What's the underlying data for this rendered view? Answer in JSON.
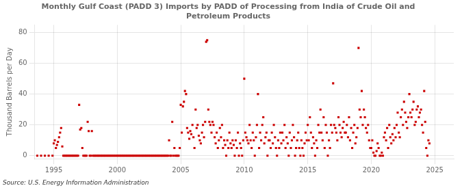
{
  "chart_data": {
    "type": "scatter",
    "title": "Monthly Gulf Coast (PADD 3) Imports by PADD of Processing from India of Crude Oil and\nPetroleum Products",
    "ylabel": "Thousand Barrels per Day",
    "source": "Source: U.S. Energy Information Administration",
    "color": "#cc0000",
    "marker": "square",
    "grid": true,
    "xlim": [
      1993.5,
      2026.5
    ],
    "ylim": [
      -2,
      85
    ],
    "xticks": [
      1995,
      2000,
      2005,
      2010,
      2015,
      2020,
      2025
    ],
    "yticks": [
      0,
      20,
      40,
      60,
      80
    ],
    "x": [
      1993.7,
      1994.0,
      1994.3,
      1994.6,
      1994.9,
      1995.0,
      1995.08,
      1995.17,
      1995.25,
      1995.33,
      1995.42,
      1995.5,
      1995.58,
      1995.67,
      1995.75,
      1995.83,
      1995.92,
      1996.0,
      1996.08,
      1996.17,
      1996.25,
      1996.33,
      1996.42,
      1996.5,
      1996.58,
      1996.67,
      1996.75,
      1996.83,
      1996.92,
      1997.0,
      1997.08,
      1997.17,
      1997.25,
      1997.33,
      1997.42,
      1997.5,
      1997.58,
      1997.67,
      1997.75,
      1997.83,
      1997.92,
      1998.0,
      1998.08,
      1998.17,
      1998.25,
      1998.33,
      1998.42,
      1998.5,
      1998.58,
      1998.67,
      1998.75,
      1998.83,
      1998.92,
      1999.0,
      1999.08,
      1999.17,
      1999.25,
      1999.33,
      1999.42,
      1999.5,
      1999.58,
      1999.67,
      1999.75,
      1999.83,
      1999.92,
      2000.0,
      2000.08,
      2000.17,
      2000.25,
      2000.33,
      2000.42,
      2000.5,
      2000.58,
      2000.67,
      2000.75,
      2000.83,
      2000.92,
      2001.0,
      2001.08,
      2001.17,
      2001.25,
      2001.33,
      2001.42,
      2001.5,
      2001.58,
      2001.67,
      2001.75,
      2001.83,
      2001.92,
      2002.0,
      2002.08,
      2002.17,
      2002.25,
      2002.33,
      2002.42,
      2002.5,
      2002.58,
      2002.67,
      2002.75,
      2002.83,
      2002.92,
      2003.0,
      2003.08,
      2003.17,
      2003.25,
      2003.33,
      2003.42,
      2003.5,
      2003.58,
      2003.67,
      2003.75,
      2003.83,
      2003.92,
      2004.0,
      2004.08,
      2004.17,
      2004.25,
      2004.33,
      2004.42,
      2004.5,
      2004.58,
      2004.67,
      2004.75,
      2004.83,
      2004.92,
      2005.0,
      2005.08,
      2005.17,
      2005.25,
      2005.33,
      2005.42,
      2005.5,
      2005.58,
      2005.67,
      2005.75,
      2005.83,
      2005.92,
      2006.0,
      2006.08,
      2006.17,
      2006.25,
      2006.33,
      2006.42,
      2006.5,
      2006.58,
      2006.67,
      2006.75,
      2006.83,
      2006.92,
      2007.0,
      2007.08,
      2007.17,
      2007.25,
      2007.33,
      2007.42,
      2007.5,
      2007.58,
      2007.67,
      2007.75,
      2007.83,
      2007.92,
      2008.0,
      2008.08,
      2008.17,
      2008.25,
      2008.33,
      2008.42,
      2008.5,
      2008.58,
      2008.67,
      2008.75,
      2008.83,
      2008.92,
      2009.0,
      2009.08,
      2009.17,
      2009.25,
      2009.33,
      2009.42,
      2009.5,
      2009.58,
      2009.67,
      2009.75,
      2009.83,
      2009.92,
      2010.0,
      2010.08,
      2010.17,
      2010.25,
      2010.33,
      2010.42,
      2010.5,
      2010.58,
      2010.67,
      2010.75,
      2010.83,
      2010.92,
      2011.0,
      2011.08,
      2011.17,
      2011.25,
      2011.33,
      2011.42,
      2011.5,
      2011.58,
      2011.67,
      2011.75,
      2011.83,
      2011.92,
      2012.0,
      2012.08,
      2012.17,
      2012.25,
      2012.33,
      2012.42,
      2012.5,
      2012.58,
      2012.67,
      2012.75,
      2012.83,
      2012.92,
      2013.0,
      2013.08,
      2013.17,
      2013.25,
      2013.33,
      2013.42,
      2013.5,
      2013.58,
      2013.67,
      2013.75,
      2013.83,
      2013.92,
      2014.0,
      2014.08,
      2014.17,
      2014.25,
      2014.33,
      2014.42,
      2014.5,
      2014.58,
      2014.67,
      2014.75,
      2014.83,
      2014.92,
      2015.0,
      2015.08,
      2015.17,
      2015.25,
      2015.33,
      2015.42,
      2015.5,
      2015.58,
      2015.67,
      2015.75,
      2015.83,
      2015.92,
      2016.0,
      2016.08,
      2016.17,
      2016.25,
      2016.33,
      2016.42,
      2016.5,
      2016.58,
      2016.67,
      2016.75,
      2016.83,
      2016.92,
      2017.0,
      2017.08,
      2017.17,
      2017.25,
      2017.33,
      2017.42,
      2017.5,
      2017.58,
      2017.67,
      2017.75,
      2017.83,
      2017.92,
      2018.0,
      2018.08,
      2018.17,
      2018.25,
      2018.33,
      2018.42,
      2018.5,
      2018.58,
      2018.67,
      2018.75,
      2018.83,
      2018.92,
      2019.0,
      2019.08,
      2019.17,
      2019.25,
      2019.33,
      2019.42,
      2019.5,
      2019.58,
      2019.67,
      2019.75,
      2019.83,
      2019.92,
      2020.0,
      2020.08,
      2020.17,
      2020.25,
      2020.33,
      2020.42,
      2020.5,
      2020.58,
      2020.67,
      2020.75,
      2020.83,
      2020.92,
      2021.0,
      2021.08,
      2021.17,
      2021.25,
      2021.33,
      2021.42,
      2021.5,
      2021.58,
      2021.67,
      2021.75,
      2021.83,
      2021.92,
      2022.0,
      2022.08,
      2022.17,
      2022.25,
      2022.33,
      2022.42,
      2022.5,
      2022.58,
      2022.67,
      2022.75,
      2022.83,
      2022.92,
      2023.0,
      2023.08,
      2023.17,
      2023.25,
      2023.33,
      2023.42,
      2023.5,
      2023.58,
      2023.67,
      2023.75,
      2023.83,
      2023.92,
      2024.0,
      2024.08,
      2024.17,
      2024.25,
      2024.33,
      2024.42,
      2024.5,
      2024.58
    ],
    "values": [
      0,
      0,
      0,
      0,
      0,
      8,
      10,
      5,
      7,
      9,
      12,
      15,
      18,
      6,
      0,
      0,
      0,
      0,
      0,
      0,
      0,
      0,
      0,
      0,
      0,
      0,
      0,
      0,
      0,
      33,
      17,
      18,
      5,
      0,
      0,
      0,
      0,
      22,
      16,
      0,
      0,
      16,
      0,
      0,
      0,
      0,
      0,
      0,
      0,
      0,
      0,
      0,
      0,
      0,
      0,
      0,
      0,
      0,
      0,
      0,
      0,
      0,
      0,
      0,
      0,
      0,
      0,
      0,
      0,
      0,
      0,
      0,
      0,
      0,
      0,
      0,
      0,
      0,
      0,
      0,
      0,
      0,
      0,
      0,
      0,
      0,
      0,
      0,
      0,
      0,
      0,
      0,
      0,
      0,
      0,
      0,
      0,
      0,
      0,
      0,
      0,
      0,
      0,
      0,
      0,
      0,
      0,
      0,
      0,
      0,
      0,
      0,
      0,
      0,
      10,
      0,
      0,
      22,
      0,
      5,
      0,
      0,
      0,
      0,
      5,
      33,
      15,
      32,
      35,
      42,
      40,
      18,
      15,
      11,
      16,
      14,
      20,
      12,
      5,
      30,
      18,
      20,
      13,
      10,
      8,
      15,
      20,
      12,
      22,
      74,
      75,
      30,
      22,
      20,
      15,
      22,
      20,
      12,
      8,
      15,
      5,
      10,
      18,
      12,
      20,
      5,
      10,
      7,
      0,
      10,
      5,
      15,
      8,
      5,
      10,
      7,
      0,
      10,
      5,
      15,
      0,
      8,
      5,
      0,
      10,
      50,
      15,
      12,
      10,
      8,
      20,
      10,
      5,
      15,
      10,
      0,
      12,
      20,
      40,
      5,
      15,
      10,
      20,
      25,
      8,
      12,
      15,
      0,
      10,
      10,
      5,
      15,
      8,
      20,
      12,
      5,
      0,
      10,
      5,
      15,
      8,
      15,
      10,
      20,
      5,
      12,
      8,
      0,
      15,
      5,
      10,
      20,
      12,
      0,
      5,
      10,
      15,
      5,
      0,
      10,
      5,
      0,
      8,
      15,
      10,
      20,
      10,
      25,
      15,
      5,
      12,
      8,
      0,
      10,
      5,
      20,
      15,
      30,
      15,
      10,
      25,
      5,
      20,
      15,
      0,
      10,
      5,
      20,
      15,
      47,
      20,
      18,
      15,
      10,
      25,
      20,
      15,
      12,
      18,
      22,
      15,
      15,
      20,
      12,
      25,
      10,
      18,
      5,
      15,
      20,
      8,
      12,
      18,
      70,
      30,
      25,
      42,
      20,
      30,
      25,
      18,
      15,
      20,
      10,
      5,
      5,
      10,
      2,
      0,
      0,
      3,
      8,
      5,
      0,
      0,
      2,
      0,
      12,
      15,
      10,
      18,
      5,
      20,
      12,
      8,
      14,
      10,
      18,
      12,
      20,
      28,
      15,
      12,
      25,
      30,
      20,
      35,
      28,
      22,
      18,
      25,
      40,
      28,
      25,
      30,
      35,
      20,
      22,
      30,
      32,
      25,
      28,
      30,
      20,
      15,
      42,
      22,
      5,
      0,
      10,
      8
    ]
  }
}
